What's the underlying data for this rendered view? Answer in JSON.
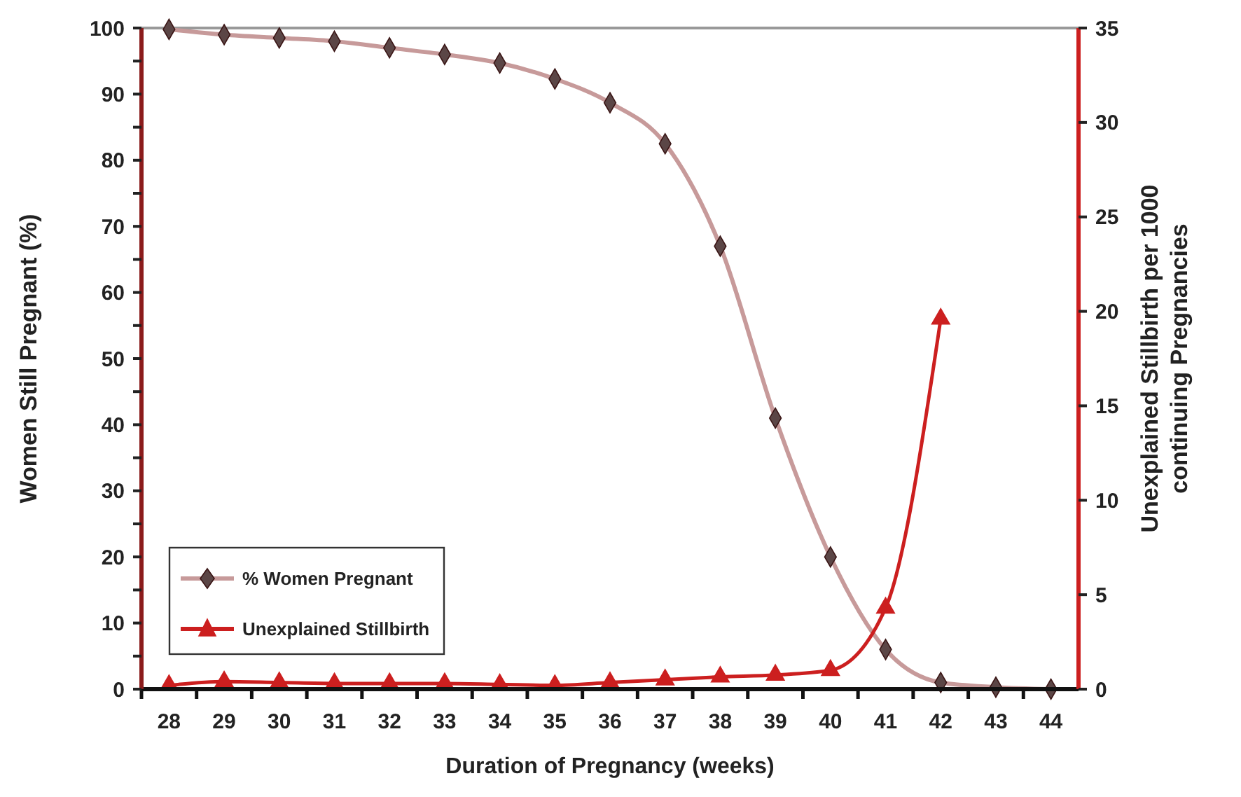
{
  "chart_data": {
    "type": "line",
    "xlabel": "Duration of Pregnancy (weeks)",
    "ylabel": "Women Still Pregnant (%)",
    "y2label": "Unexplained Stillbirth per 1000 continuing Pregnancies",
    "categories": [
      "28",
      "29",
      "30",
      "31",
      "32",
      "33",
      "34",
      "35",
      "36",
      "37",
      "38",
      "39",
      "40",
      "41",
      "42",
      "43",
      "44"
    ],
    "series": [
      {
        "name": "% Women Pregnant",
        "color": "#c79a9a",
        "marker": "diamond",
        "values": [
          99.8,
          99,
          98.5,
          98,
          97,
          96,
          94.7,
          92.3,
          88.7,
          82.5,
          67,
          41,
          20,
          6,
          1,
          0.3,
          0
        ]
      },
      {
        "name": "Unexplained Stillbirth",
        "color": "#cc1f1f",
        "marker": "triangle",
        "axis": "y2",
        "values": [
          0.2,
          0.4,
          0.35,
          0.3,
          0.3,
          0.3,
          0.25,
          0.2,
          0.35,
          0.5,
          0.65,
          0.75,
          1.0,
          4.3,
          19.6,
          null,
          null
        ]
      }
    ],
    "ylim": [
      0,
      100
    ],
    "yticks": [
      0,
      {
        "value": 5,
        "label": null
      },
      10,
      {
        "value": 15,
        "label": null
      },
      20,
      {
        "value": 25,
        "label": null
      },
      30,
      {
        "value": 35,
        "label": null
      },
      40,
      {
        "value": 45,
        "label": null
      },
      50,
      {
        "value": 55,
        "label": null
      },
      60,
      {
        "value": 65,
        "label": null
      },
      70,
      {
        "value": 75,
        "label": null
      },
      80,
      {
        "value": 85,
        "label": null
      },
      90,
      {
        "value": 95,
        "label": null
      },
      100
    ],
    "y2lim": [
      0,
      35
    ],
    "y2ticks": [
      0,
      5,
      10,
      15,
      20,
      25,
      30,
      35
    ],
    "grid": false,
    "legend": "bottom left",
    "line_style": "solid"
  }
}
